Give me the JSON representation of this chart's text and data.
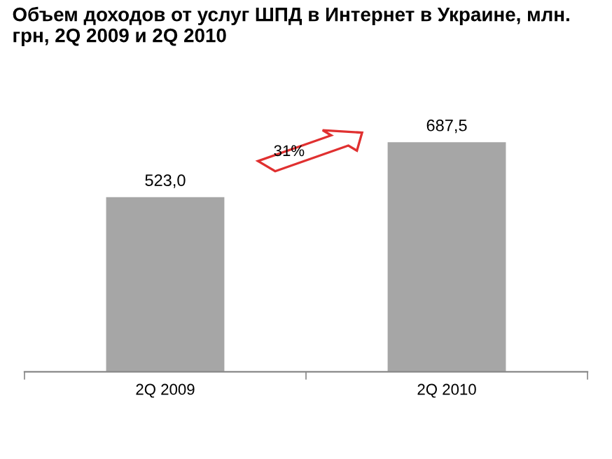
{
  "chart_data": {
    "type": "bar",
    "title": "Объем доходов от услуг ШПД в Интернет в Украине, млн. грн, 2Q 2009 и 2Q 2010",
    "categories": [
      "2Q 2009",
      "2Q 2010"
    ],
    "values": [
      523.0,
      687.5
    ],
    "value_labels": [
      "523,0",
      "687,5"
    ],
    "color": "#a6a6a6",
    "annotations": [
      "31%"
    ],
    "grid": false,
    "legend": false
  }
}
